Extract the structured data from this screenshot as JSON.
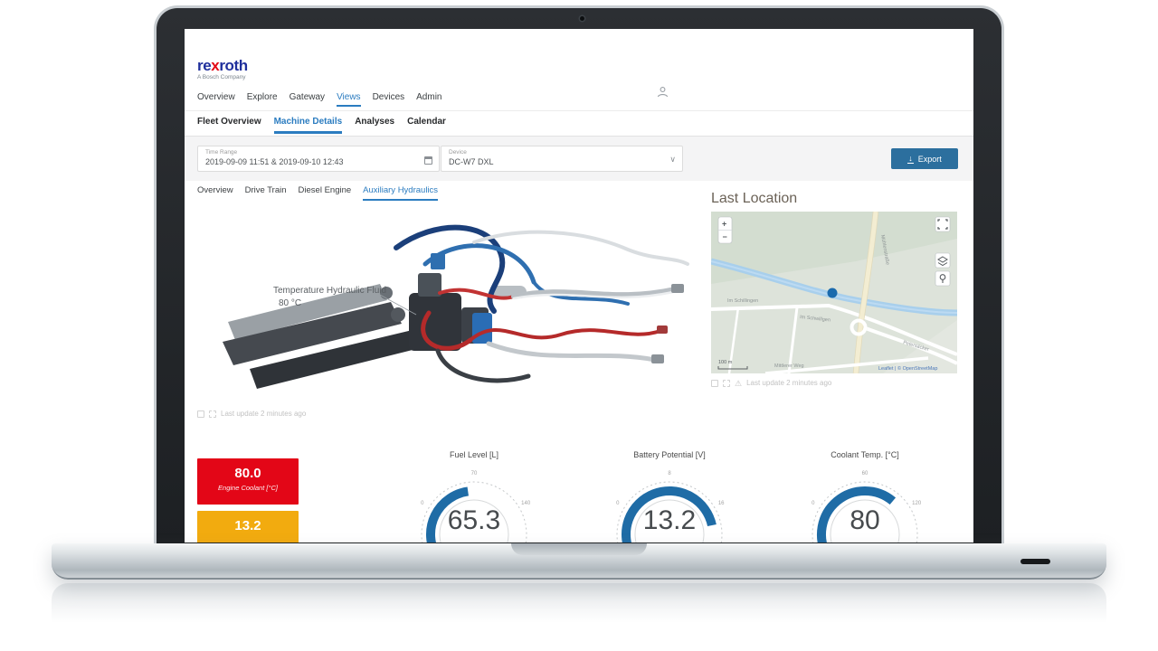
{
  "colors": {
    "accent": "#2b7cc0",
    "button_blue": "#2c6f9e",
    "alert_red": "#e30617",
    "warn_orange": "#f2ab0f",
    "gauge_blue": "#1f6ca6",
    "brand_blue": "#1f2f9c",
    "brand_red": "#e30613"
  },
  "app": {
    "logo": {
      "brand_re": "re",
      "brand_x": "x",
      "brand_roth": "roth",
      "tagline": "A Bosch Company"
    },
    "top_nav": {
      "items": [
        {
          "label": "Overview"
        },
        {
          "label": "Explore"
        },
        {
          "label": "Gateway"
        },
        {
          "label": "Views"
        },
        {
          "label": "Devices"
        },
        {
          "label": "Admin"
        }
      ]
    },
    "page_tabs": {
      "items": [
        {
          "label": "Fleet Overview"
        },
        {
          "label": "Machine Details"
        },
        {
          "label": "Analyses"
        },
        {
          "label": "Calendar"
        }
      ]
    },
    "filters": {
      "time_range": {
        "label": "Time Range",
        "value": "2019-09-09 11:51 & 2019-09-10 12:43"
      },
      "device": {
        "label": "Device",
        "value": "DC-W7 DXL"
      },
      "export_label": "Export"
    },
    "detail_tabs": {
      "items": [
        {
          "label": "Overview"
        },
        {
          "label": "Drive Train"
        },
        {
          "label": "Diesel Engine"
        },
        {
          "label": "Auxiliary Hydraulics"
        }
      ]
    },
    "machine": {
      "annotation_title": "Temperature Hydraulic Fluid",
      "annotation_value": "80 °C",
      "last_update": "Last update 2 minutes ago"
    },
    "map": {
      "title": "Last Location",
      "zoom_in": "+",
      "zoom_out": "−",
      "scale_label": "100 m",
      "attribution": "Leaflet | © OpenStreetMap",
      "last_update": "Last update 2 minutes ago",
      "streets": [
        {
          "name": "Im Schillingen"
        },
        {
          "name": "Im Schwillgen"
        },
        {
          "name": "Mittlerer Weg"
        },
        {
          "name": "Mühlenstraße"
        },
        {
          "name": "Petersäcker"
        }
      ]
    },
    "tiles": [
      {
        "value": "80.0",
        "label": "Engine Coolant [°C]"
      },
      {
        "value": "13.2"
      }
    ]
  },
  "gauges": [
    {
      "title": "Fuel Level [L]",
      "value": 65.3,
      "display": "65.3",
      "min": 0,
      "max": 140,
      "ticks": [
        "0",
        "70",
        "140"
      ]
    },
    {
      "title": "Battery Potential [V]",
      "value": 13.2,
      "display": "13.2",
      "min": 0,
      "max": 16,
      "ticks": [
        "0",
        "8",
        "16"
      ]
    },
    {
      "title": "Coolant Temp. [°C]",
      "value": 80,
      "display": "80",
      "min": 0,
      "max": 120,
      "ticks": [
        "0",
        "60",
        "120"
      ]
    }
  ]
}
